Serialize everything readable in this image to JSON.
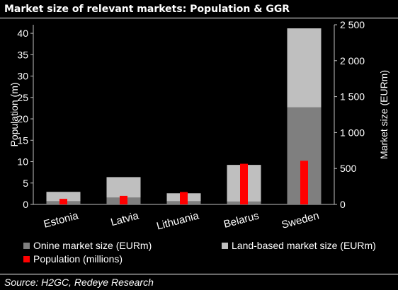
{
  "title": "Market size of relevant markets: Population & GGR",
  "source": "Source: H2GC, Redeye Research",
  "colors": {
    "online": "#7f7f7f",
    "land": "#bfbfbf",
    "population": "#ff0000",
    "axis": "#bfbfbf"
  },
  "chart_data": {
    "type": "bar",
    "categories": [
      "Estonia",
      "Latvia",
      "Lithuania",
      "Belarus",
      "Sweden"
    ],
    "series": [
      {
        "name": "Onine market size (EURm)",
        "axis": "right",
        "stack": "market",
        "values": [
          45,
          95,
          45,
          40,
          1350
        ]
      },
      {
        "name": "Land-based market size (EURm)",
        "axis": "right",
        "stack": "market",
        "values": [
          130,
          285,
          110,
          510,
          1100
        ]
      },
      {
        "name": "Population (millions)",
        "axis": "left",
        "values": [
          1.3,
          2.0,
          2.9,
          9.5,
          10.2
        ]
      }
    ],
    "ylabel": "Population  (m)",
    "ylabel_right": "Market size (EURm)",
    "ylim": [
      0,
      42
    ],
    "ylim_right": [
      0,
      2500
    ],
    "y_ticks": [
      "0",
      "5",
      "10",
      "15",
      "20",
      "25",
      "30",
      "35",
      "40"
    ],
    "y_ticks_right": [
      "0",
      "500",
      "1 000",
      "1 500",
      "2 000",
      "2 500"
    ],
    "legend_position": "bottom",
    "grid": false
  }
}
